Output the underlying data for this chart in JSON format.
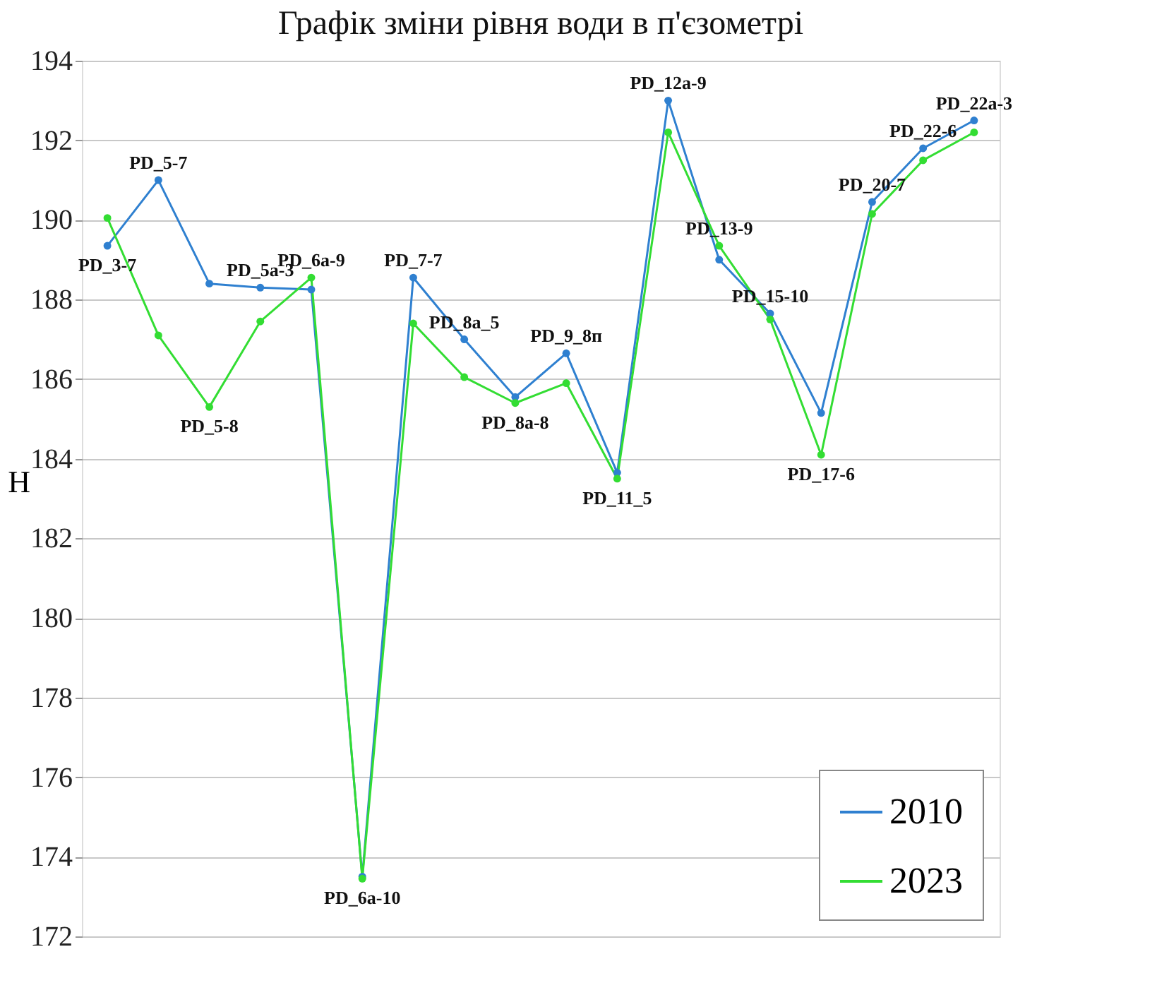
{
  "chart_data": {
    "type": "line",
    "title": "Графік зміни рівня води в п'єзометрі",
    "ylabel": "H",
    "categories": [
      "PD_3-7",
      "PD_5-7",
      "PD_5-8",
      "PD_5a-3",
      "PD_6a-9",
      "PD_6a-10",
      "PD_7-7",
      "PD_8a_5",
      "PD_8a-8",
      "PD_9_8п",
      "PD_11_5",
      "PD_12a-9",
      "PD_13-9",
      "PD_15-10",
      "PD_17-6",
      "PD_20-7",
      "PD_22-6",
      "PD_22a-3"
    ],
    "series": [
      {
        "name": "2010",
        "color": "#2f80d0",
        "values": [
          189.35,
          191.0,
          188.4,
          188.3,
          188.25,
          173.5,
          188.55,
          187.0,
          185.55,
          186.65,
          183.65,
          193.0,
          189.0,
          187.65,
          185.15,
          190.45,
          191.8,
          192.5
        ]
      },
      {
        "name": "2023",
        "color": "#33dd33",
        "values": [
          190.05,
          187.1,
          185.3,
          187.45,
          188.55,
          173.45,
          187.4,
          186.05,
          185.4,
          185.9,
          183.5,
          192.2,
          189.35,
          187.5,
          184.1,
          190.15,
          191.5,
          192.2
        ]
      }
    ],
    "ylim": [
      172,
      194
    ],
    "yticks": [
      172,
      174,
      176,
      178,
      180,
      182,
      184,
      186,
      188,
      190,
      192,
      194
    ],
    "grid": "y",
    "legend": "bottom right",
    "marker": "circle",
    "line_style": "solid"
  }
}
